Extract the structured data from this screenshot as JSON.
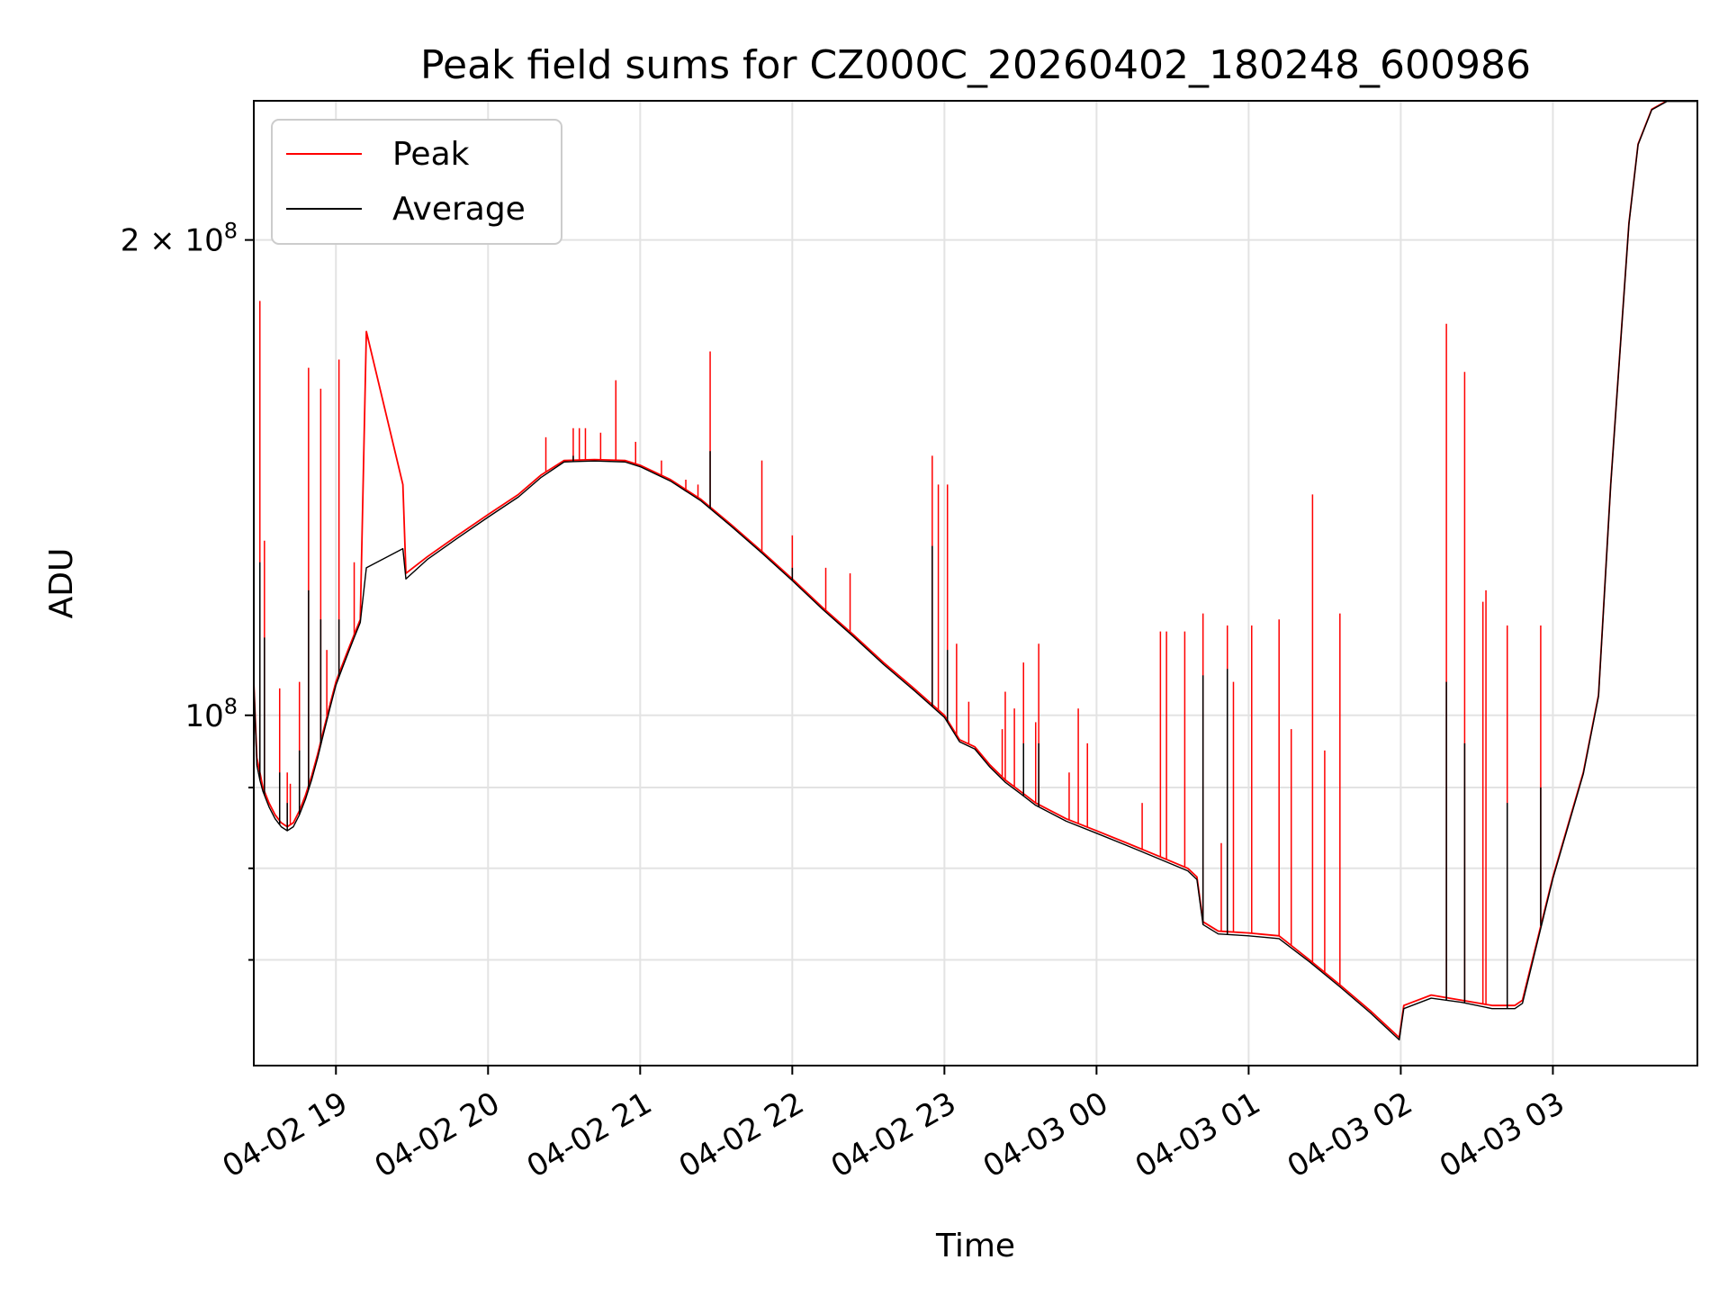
{
  "chart_data": {
    "type": "line",
    "title": "Peak field sums for CZ000C_20260402_180248_600986",
    "xlabel": "Time",
    "ylabel": "ADU",
    "yscale": "log",
    "grid": true,
    "legend_position": "top-left",
    "x_unit": "hours since 04-02 18:00",
    "xlim": [
      18.46,
      27.95
    ],
    "ylim": [
      60000000,
      245000000
    ],
    "x_ticks": [
      {
        "x": 19.0,
        "label": "04-02 19"
      },
      {
        "x": 20.0,
        "label": "04-02 20"
      },
      {
        "x": 21.0,
        "label": "04-02 21"
      },
      {
        "x": 22.0,
        "label": "04-02 22"
      },
      {
        "x": 23.0,
        "label": "04-02 23"
      },
      {
        "x": 24.0,
        "label": "04-03 00"
      },
      {
        "x": 25.0,
        "label": "04-03 01"
      },
      {
        "x": 26.0,
        "label": "04-03 02"
      },
      {
        "x": 27.0,
        "label": "04-03 03"
      }
    ],
    "y_major_ticks": [
      {
        "y": 100000000,
        "base": "10",
        "exponent": "8",
        "mantissa": ""
      },
      {
        "y": 200000000,
        "base": "10",
        "exponent": "8",
        "mantissa": "2"
      }
    ],
    "y_minor_ticks": [
      70000000,
      80000000,
      90000000,
      300000000
    ],
    "series": [
      {
        "name": "Peak",
        "color": "#ff0000",
        "points": [
          [
            18.46,
            105000000
          ],
          [
            18.48,
            94000000
          ],
          [
            18.5,
            92000000
          ],
          [
            18.52,
            90000000
          ],
          [
            18.56,
            88000000
          ],
          [
            18.6,
            86500000
          ],
          [
            18.64,
            85500000
          ],
          [
            18.68,
            85000000
          ],
          [
            18.72,
            85500000
          ],
          [
            18.76,
            87000000
          ],
          [
            18.8,
            89000000
          ],
          [
            18.84,
            91500000
          ],
          [
            18.88,
            94500000
          ],
          [
            18.92,
            98000000
          ],
          [
            18.96,
            101500000
          ],
          [
            19.0,
            105000000
          ],
          [
            19.04,
            107500000
          ],
          [
            19.08,
            110000000
          ],
          [
            19.12,
            112500000
          ],
          [
            19.16,
            115000000
          ],
          [
            19.2,
            175000000
          ],
          [
            19.44,
            140000000
          ],
          [
            19.46,
            123000000
          ],
          [
            19.6,
            126000000
          ],
          [
            19.8,
            130000000
          ],
          [
            20.0,
            134000000
          ],
          [
            20.2,
            138000000
          ],
          [
            20.35,
            142000000
          ],
          [
            20.5,
            145000000
          ],
          [
            20.7,
            145200000
          ],
          [
            20.9,
            145000000
          ],
          [
            21.0,
            144000000
          ],
          [
            21.2,
            141000000
          ],
          [
            21.4,
            137000000
          ],
          [
            21.6,
            132000000
          ],
          [
            21.8,
            127000000
          ],
          [
            22.0,
            122000000
          ],
          [
            22.2,
            117000000
          ],
          [
            22.4,
            112500000
          ],
          [
            22.6,
            108000000
          ],
          [
            22.8,
            104000000
          ],
          [
            23.0,
            100000000
          ],
          [
            23.1,
            96500000
          ],
          [
            23.2,
            95500000
          ],
          [
            23.3,
            93000000
          ],
          [
            23.4,
            91000000
          ],
          [
            23.5,
            89500000
          ],
          [
            23.6,
            88000000
          ],
          [
            23.8,
            86000000
          ],
          [
            24.0,
            84500000
          ],
          [
            24.2,
            83000000
          ],
          [
            24.4,
            81500000
          ],
          [
            24.6,
            80000000
          ],
          [
            24.66,
            79000000
          ],
          [
            24.7,
            74000000
          ],
          [
            24.8,
            73000000
          ],
          [
            25.0,
            72800000
          ],
          [
            25.2,
            72500000
          ],
          [
            25.4,
            70000000
          ],
          [
            25.6,
            67500000
          ],
          [
            25.8,
            65000000
          ],
          [
            25.99,
            62500000
          ],
          [
            26.02,
            65500000
          ],
          [
            26.2,
            66500000
          ],
          [
            26.4,
            66000000
          ],
          [
            26.6,
            65500000
          ],
          [
            26.75,
            65500000
          ],
          [
            26.8,
            66000000
          ],
          [
            27.0,
            79000000
          ],
          [
            27.2,
            92000000
          ],
          [
            27.3,
            103000000
          ],
          [
            27.38,
            140000000
          ],
          [
            27.45,
            175000000
          ],
          [
            27.5,
            205000000
          ],
          [
            27.56,
            230000000
          ],
          [
            27.65,
            242000000
          ],
          [
            27.75,
            245000000
          ],
          [
            27.95,
            245000000
          ]
        ],
        "spikes": [
          [
            18.5,
            183000000
          ],
          [
            18.53,
            129000000
          ],
          [
            18.63,
            104000000
          ],
          [
            18.68,
            92000000
          ],
          [
            18.7,
            90500000
          ],
          [
            18.76,
            105000000
          ],
          [
            18.82,
            166000000
          ],
          [
            18.9,
            161000000
          ],
          [
            18.94,
            110000000
          ],
          [
            19.02,
            168000000
          ],
          [
            19.12,
            125000000
          ],
          [
            20.38,
            150000000
          ],
          [
            20.56,
            152000000
          ],
          [
            20.6,
            152000000
          ],
          [
            20.64,
            152000000
          ],
          [
            20.74,
            151000000
          ],
          [
            20.84,
            163000000
          ],
          [
            20.97,
            149000000
          ],
          [
            21.14,
            145000000
          ],
          [
            21.3,
            141000000
          ],
          [
            21.38,
            140000000
          ],
          [
            21.46,
            170000000
          ],
          [
            21.8,
            145000000
          ],
          [
            22.0,
            130000000
          ],
          [
            22.22,
            124000000
          ],
          [
            22.38,
            123000000
          ],
          [
            22.92,
            146000000
          ],
          [
            22.96,
            140000000
          ],
          [
            23.02,
            140000000
          ],
          [
            23.08,
            111000000
          ],
          [
            23.16,
            102000000
          ],
          [
            23.38,
            98000000
          ],
          [
            23.4,
            103500000
          ],
          [
            23.46,
            101000000
          ],
          [
            23.52,
            108000000
          ],
          [
            23.6,
            99000000
          ],
          [
            23.62,
            111000000
          ],
          [
            23.82,
            92000000
          ],
          [
            23.88,
            101000000
          ],
          [
            23.94,
            96000000
          ],
          [
            24.3,
            88000000
          ],
          [
            24.42,
            113000000
          ],
          [
            24.46,
            113000000
          ],
          [
            24.58,
            113000000
          ],
          [
            24.7,
            116000000
          ],
          [
            24.82,
            83000000
          ],
          [
            24.86,
            114000000
          ],
          [
            24.9,
            105000000
          ],
          [
            25.02,
            114000000
          ],
          [
            25.2,
            115000000
          ],
          [
            25.28,
            98000000
          ],
          [
            25.42,
            138000000
          ],
          [
            25.5,
            95000000
          ],
          [
            25.6,
            116000000
          ],
          [
            26.3,
            177000000
          ],
          [
            26.42,
            165000000
          ],
          [
            26.54,
            118000000
          ],
          [
            26.56,
            120000000
          ],
          [
            26.7,
            114000000
          ],
          [
            26.92,
            114000000
          ]
        ]
      },
      {
        "name": "Average",
        "color": "#000000",
        "points": [
          [
            18.46,
            105000000
          ],
          [
            18.48,
            93000000
          ],
          [
            18.5,
            91000000
          ],
          [
            18.52,
            89500000
          ],
          [
            18.56,
            87500000
          ],
          [
            18.6,
            86000000
          ],
          [
            18.64,
            85000000
          ],
          [
            18.68,
            84500000
          ],
          [
            18.72,
            85000000
          ],
          [
            18.76,
            86500000
          ],
          [
            18.8,
            88500000
          ],
          [
            18.84,
            91000000
          ],
          [
            18.88,
            94000000
          ],
          [
            18.92,
            97500000
          ],
          [
            18.96,
            101000000
          ],
          [
            19.0,
            104500000
          ],
          [
            19.04,
            107000000
          ],
          [
            19.08,
            109500000
          ],
          [
            19.12,
            112000000
          ],
          [
            19.16,
            114500000
          ],
          [
            19.2,
            124000000
          ],
          [
            19.44,
            127500000
          ],
          [
            19.46,
            122000000
          ],
          [
            19.6,
            125500000
          ],
          [
            19.8,
            129500000
          ],
          [
            20.0,
            133500000
          ],
          [
            20.2,
            137500000
          ],
          [
            20.35,
            141500000
          ],
          [
            20.5,
            144700000
          ],
          [
            20.7,
            144900000
          ],
          [
            20.9,
            144700000
          ],
          [
            21.0,
            143700000
          ],
          [
            21.2,
            140700000
          ],
          [
            21.4,
            136700000
          ],
          [
            21.6,
            131700000
          ],
          [
            21.8,
            126700000
          ],
          [
            22.0,
            121700000
          ],
          [
            22.2,
            116700000
          ],
          [
            22.4,
            112200000
          ],
          [
            22.6,
            107700000
          ],
          [
            22.8,
            103700000
          ],
          [
            23.0,
            99700000
          ],
          [
            23.1,
            96200000
          ],
          [
            23.2,
            95200000
          ],
          [
            23.3,
            92700000
          ],
          [
            23.4,
            90700000
          ],
          [
            23.5,
            89200000
          ],
          [
            23.6,
            87700000
          ],
          [
            23.8,
            85700000
          ],
          [
            24.0,
            84200000
          ],
          [
            24.2,
            82700000
          ],
          [
            24.4,
            81200000
          ],
          [
            24.6,
            79700000
          ],
          [
            24.66,
            78700000
          ],
          [
            24.7,
            73700000
          ],
          [
            24.8,
            72700000
          ],
          [
            25.0,
            72500000
          ],
          [
            25.2,
            72200000
          ],
          [
            25.4,
            69800000
          ],
          [
            25.6,
            67300000
          ],
          [
            25.8,
            64800000
          ],
          [
            25.99,
            62300000
          ],
          [
            26.02,
            65200000
          ],
          [
            26.2,
            66200000
          ],
          [
            26.4,
            65800000
          ],
          [
            26.6,
            65200000
          ],
          [
            26.75,
            65200000
          ],
          [
            26.8,
            65700000
          ],
          [
            27.0,
            78800000
          ],
          [
            27.2,
            91800000
          ],
          [
            27.3,
            102800000
          ],
          [
            27.38,
            139800000
          ],
          [
            27.45,
            174800000
          ],
          [
            27.5,
            204800000
          ],
          [
            27.56,
            229800000
          ],
          [
            27.65,
            241800000
          ],
          [
            27.75,
            244800000
          ],
          [
            27.95,
            244800000
          ]
        ],
        "spikes": [
          [
            18.5,
            125000000
          ],
          [
            18.53,
            112000000
          ],
          [
            18.63,
            92000000
          ],
          [
            18.68,
            88000000
          ],
          [
            18.76,
            95000000
          ],
          [
            18.82,
            120000000
          ],
          [
            18.9,
            115000000
          ],
          [
            19.02,
            115000000
          ],
          [
            20.56,
            146000000
          ],
          [
            21.46,
            147000000
          ],
          [
            22.0,
            124000000
          ],
          [
            22.92,
            128000000
          ],
          [
            23.02,
            110000000
          ],
          [
            23.52,
            96000000
          ],
          [
            23.62,
            96000000
          ],
          [
            24.7,
            106000000
          ],
          [
            24.86,
            107000000
          ],
          [
            26.3,
            105000000
          ],
          [
            26.42,
            96000000
          ],
          [
            26.7,
            88000000
          ],
          [
            26.92,
            90000000
          ]
        ]
      }
    ]
  }
}
